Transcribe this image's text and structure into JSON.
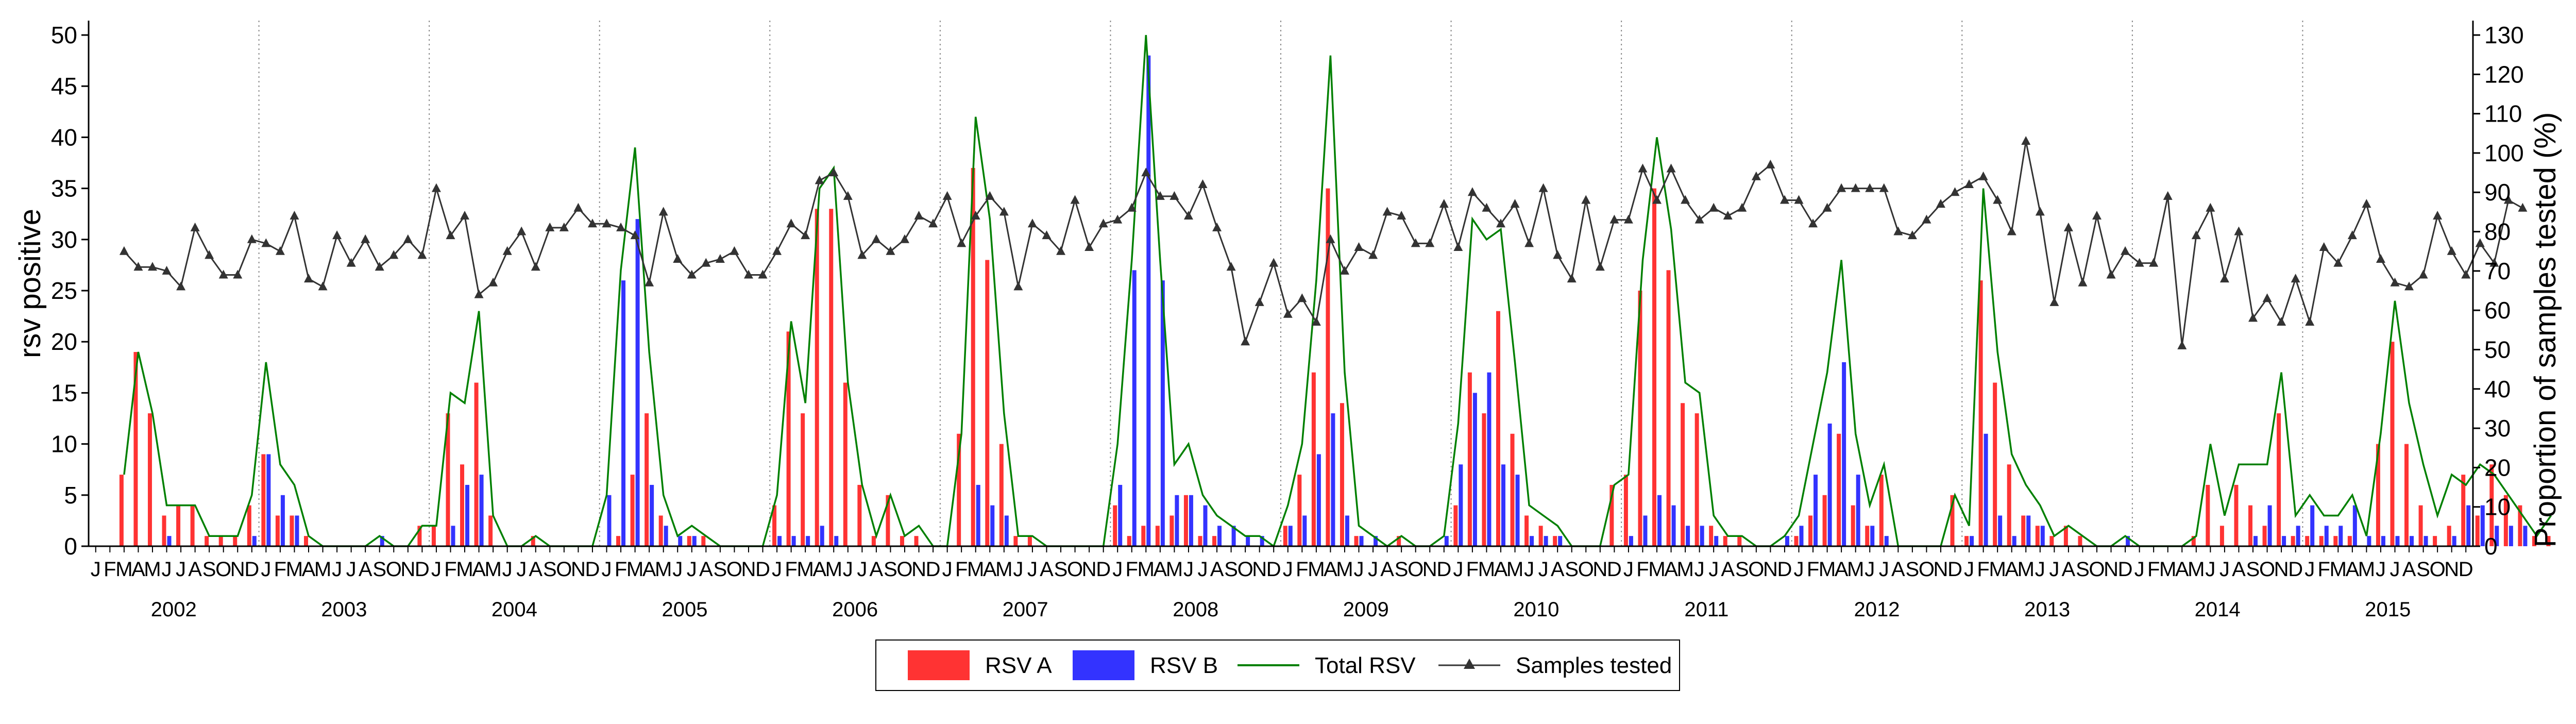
{
  "chart_data": {
    "type": "bar",
    "ylabel_left": "rsv positive",
    "ylabel_right": "Proportion of samples tested (%)",
    "ylim_left": [
      0,
      50
    ],
    "yticks_left": [
      0,
      5,
      10,
      15,
      20,
      25,
      30,
      35,
      40,
      45,
      50
    ],
    "ylim_right": [
      0,
      130
    ],
    "yticks_right": [
      0,
      10,
      20,
      30,
      40,
      50,
      60,
      70,
      80,
      90,
      100,
      110,
      120,
      130
    ],
    "month_letters": [
      "J",
      "F",
      "M",
      "A",
      "M",
      "J",
      "J",
      "A",
      "S",
      "O",
      "N",
      "D"
    ],
    "years": [
      "2002",
      "2003",
      "2004",
      "2005",
      "2006",
      "2007",
      "2008",
      "2009",
      "2010",
      "2011",
      "2012",
      "2013",
      "2014",
      "2015"
    ],
    "grid": "vertical dotted lines at year boundaries",
    "legend_position": "bottom-center",
    "legend": [
      "RSV A",
      "RSV B",
      "Total RSV",
      "Samples tested"
    ],
    "colors": {
      "rsv_a": "#ff3333",
      "rsv_b": "#3333ff",
      "total": "#008000",
      "samples": "#333333"
    },
    "series": [
      {
        "name": "RSV A",
        "axis": "left",
        "kind": "bar",
        "values": [
          0,
          0,
          7,
          19,
          13,
          3,
          4,
          4,
          1,
          1,
          1,
          4,
          9,
          3,
          3,
          1,
          0,
          0,
          0,
          0,
          0,
          0,
          0,
          2,
          2,
          13,
          8,
          16,
          3,
          0,
          0,
          1,
          0,
          0,
          0,
          0,
          0,
          1,
          7,
          13,
          3,
          0,
          1,
          1,
          0,
          0,
          0,
          0,
          4,
          21,
          13,
          33,
          33,
          16,
          6,
          1,
          5,
          1,
          1,
          0,
          0,
          11,
          37,
          28,
          10,
          1,
          1,
          0,
          0,
          0,
          0,
          0,
          4,
          1,
          2,
          2,
          3,
          5,
          1,
          1,
          0,
          0,
          0,
          0,
          2,
          7,
          17,
          35,
          14,
          1,
          0,
          0,
          1,
          0,
          0,
          0,
          4,
          17,
          13,
          23,
          11,
          3,
          2,
          1,
          0,
          0,
          0,
          6,
          7,
          25,
          35,
          27,
          14,
          13,
          2,
          1,
          1,
          0,
          0,
          0,
          1,
          3,
          5,
          11,
          4,
          2,
          7,
          0,
          0,
          0,
          0,
          5,
          1,
          26,
          16,
          8,
          3,
          2,
          1,
          2,
          1,
          0,
          0,
          0,
          0,
          0,
          0,
          0,
          1,
          6,
          2,
          6,
          4,
          2,
          13,
          1,
          1,
          1,
          1,
          1,
          0,
          10,
          20,
          10,
          4,
          1,
          2,
          7,
          3,
          8,
          5,
          4,
          1,
          1
        ]
      },
      {
        "name": "RSV B",
        "axis": "left",
        "kind": "bar",
        "values": [
          0,
          0,
          0,
          0,
          0,
          1,
          0,
          0,
          0,
          0,
          0,
          1,
          9,
          5,
          3,
          0,
          0,
          0,
          0,
          0,
          1,
          0,
          0,
          0,
          0,
          2,
          6,
          7,
          0,
          0,
          0,
          0,
          0,
          0,
          0,
          0,
          5,
          26,
          32,
          6,
          2,
          1,
          1,
          0,
          0,
          0,
          0,
          0,
          1,
          1,
          1,
          2,
          1,
          0,
          0,
          0,
          0,
          0,
          0,
          0,
          0,
          0,
          6,
          4,
          3,
          0,
          0,
          0,
          0,
          0,
          0,
          0,
          6,
          27,
          48,
          26,
          5,
          5,
          4,
          2,
          2,
          1,
          1,
          0,
          2,
          3,
          9,
          13,
          3,
          1,
          1,
          0,
          0,
          0,
          0,
          1,
          8,
          15,
          17,
          8,
          7,
          1,
          1,
          1,
          0,
          0,
          0,
          0,
          1,
          3,
          5,
          4,
          2,
          2,
          1,
          0,
          0,
          0,
          0,
          1,
          2,
          7,
          12,
          18,
          7,
          2,
          1,
          0,
          0,
          0,
          0,
          0,
          1,
          11,
          3,
          1,
          3,
          2,
          0,
          0,
          0,
          0,
          0,
          1,
          0,
          0,
          0,
          0,
          0,
          0,
          0,
          0,
          1,
          4,
          1,
          2,
          4,
          2,
          2,
          4,
          1,
          1,
          1,
          1,
          1,
          0,
          1,
          4,
          4,
          2,
          2,
          2,
          0,
          0
        ]
      },
      {
        "name": "Total RSV",
        "axis": "left",
        "kind": "line",
        "values": [
          null,
          null,
          7,
          19,
          13,
          4,
          4,
          4,
          1,
          1,
          1,
          5,
          18,
          8,
          6,
          1,
          0,
          0,
          0,
          0,
          1,
          0,
          0,
          2,
          2,
          15,
          14,
          23,
          3,
          0,
          0,
          1,
          0,
          0,
          0,
          0,
          5,
          27,
          39,
          19,
          5,
          1,
          2,
          1,
          0,
          0,
          0,
          0,
          5,
          22,
          14,
          35,
          37,
          16,
          6,
          1,
          5,
          1,
          2,
          0,
          0,
          11,
          42,
          32,
          13,
          1,
          1,
          0,
          0,
          0,
          0,
          0,
          10,
          28,
          50,
          28,
          8,
          10,
          5,
          3,
          2,
          1,
          1,
          0,
          4,
          10,
          26,
          48,
          17,
          2,
          1,
          0,
          1,
          0,
          0,
          1,
          12,
          32,
          30,
          31,
          18,
          4,
          3,
          2,
          0,
          0,
          0,
          6,
          7,
          28,
          40,
          31,
          16,
          15,
          3,
          1,
          1,
          0,
          0,
          1,
          3,
          10,
          17,
          28,
          11,
          4,
          8,
          0,
          0,
          0,
          0,
          5,
          2,
          35,
          19,
          9,
          6,
          4,
          1,
          2,
          1,
          0,
          0,
          1,
          0,
          0,
          0,
          0,
          1,
          10,
          3,
          8,
          8,
          8,
          17,
          3,
          5,
          3,
          3,
          5,
          1,
          11,
          24,
          14,
          8,
          3,
          7,
          6,
          8,
          7,
          5,
          3,
          1,
          3
        ]
      },
      {
        "name": "Samples tested",
        "axis": "right",
        "kind": "line",
        "values": [
          null,
          null,
          75,
          71,
          71,
          70,
          66,
          81,
          74,
          69,
          69,
          78,
          77,
          75,
          84,
          68,
          66,
          79,
          72,
          78,
          71,
          74,
          78,
          74,
          91,
          79,
          84,
          64,
          67,
          75,
          80,
          71,
          81,
          81,
          86,
          82,
          82,
          81,
          79,
          67,
          85,
          73,
          69,
          72,
          73,
          75,
          69,
          69,
          75,
          82,
          79,
          93,
          95,
          89,
          74,
          78,
          75,
          78,
          84,
          82,
          89,
          77,
          84,
          89,
          85,
          66,
          82,
          79,
          75,
          88,
          76,
          82,
          83,
          86,
          95,
          89,
          89,
          84,
          92,
          81,
          71,
          52,
          62,
          72,
          59,
          63,
          57,
          78,
          70,
          76,
          74,
          85,
          84,
          77,
          77,
          87,
          76,
          90,
          86,
          82,
          87,
          77,
          91,
          74,
          68,
          88,
          71,
          83,
          83,
          96,
          88,
          96,
          88,
          83,
          86,
          84,
          86,
          94,
          97,
          88,
          88,
          82,
          86,
          91,
          91,
          91,
          91,
          80,
          79,
          83,
          87,
          90,
          92,
          94,
          88,
          80,
          103,
          85,
          62,
          81,
          67,
          84,
          69,
          75,
          72,
          72,
          89,
          51,
          79,
          86,
          68,
          80,
          58,
          63,
          57,
          68,
          57,
          76,
          72,
          79,
          87,
          73,
          67,
          66,
          69,
          84,
          75,
          69,
          77,
          72,
          88,
          86
        ]
      }
    ]
  }
}
